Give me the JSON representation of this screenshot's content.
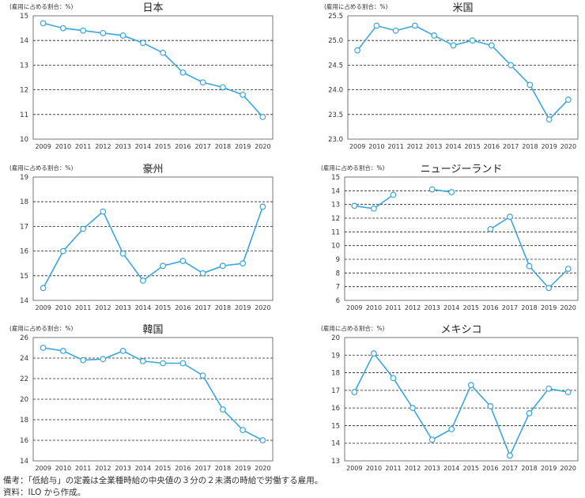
{
  "ylabel": "(雇用に占める割合：%)",
  "notes": {
    "line1": "備考：「低給与」の定義は全業種時給の中央値の３分の２未満の時給で労働する雇用。",
    "line2": "資料：ILO から作成。"
  },
  "colors": {
    "line": "#3aa6dd",
    "marker_fill": "#ffffff",
    "axis": "#555555",
    "grid": "#222222"
  },
  "chart_data": [
    {
      "type": "line",
      "title": "日本",
      "ylabel": "(雇用に占める割合：%)",
      "categories": [
        "2009",
        "2010",
        "2011",
        "2012",
        "2013",
        "2014",
        "2015",
        "2016",
        "2017",
        "2018",
        "2019",
        "2020"
      ],
      "values": [
        14.7,
        14.5,
        14.4,
        14.3,
        14.2,
        13.9,
        13.5,
        12.7,
        12.3,
        12.1,
        11.8,
        10.9
      ],
      "ylim": [
        10,
        15
      ],
      "yticks": [
        "10",
        "11",
        "12",
        "13",
        "14",
        "15"
      ],
      "grid": true
    },
    {
      "type": "line",
      "title": "米国",
      "ylabel": "(雇用に占める割合：%)",
      "categories": [
        "2009",
        "2010",
        "2011",
        "2012",
        "2013",
        "2014",
        "2015",
        "2016",
        "2017",
        "2018",
        "2019",
        "2020"
      ],
      "values": [
        24.8,
        25.3,
        25.2,
        25.3,
        25.1,
        24.9,
        25.0,
        24.9,
        24.5,
        24.1,
        23.4,
        23.8
      ],
      "ylim": [
        23.0,
        25.5
      ],
      "yticks": [
        "23.0",
        "23.5",
        "24.0",
        "24.5",
        "25.0",
        "25.5"
      ],
      "grid": true
    },
    {
      "type": "line",
      "title": "豪州",
      "ylabel": "(雇用に占める割合：%)",
      "categories": [
        "2009",
        "2010",
        "2011",
        "2012",
        "2013",
        "2014",
        "2015",
        "2016",
        "2017",
        "2018",
        "2019",
        "2020"
      ],
      "values": [
        14.5,
        16.0,
        16.9,
        17.6,
        15.9,
        14.8,
        15.4,
        15.6,
        15.1,
        15.4,
        15.5,
        17.8
      ],
      "ylim": [
        14,
        19
      ],
      "yticks": [
        "14",
        "15",
        "16",
        "17",
        "18",
        "19"
      ],
      "grid": true
    },
    {
      "type": "line",
      "title": "ニュージーランド",
      "ylabel": "(雇用に占める割合：%)",
      "categories": [
        "2009",
        "2010",
        "2011",
        "2012",
        "2013",
        "2014",
        "2015",
        "2016",
        "2017",
        "2018",
        "2019",
        "2020"
      ],
      "values": [
        12.9,
        12.7,
        13.7,
        null,
        14.1,
        13.9,
        null,
        11.2,
        12.1,
        8.5,
        6.9,
        8.3
      ],
      "ylim": [
        6,
        15
      ],
      "yticks": [
        "6",
        "7",
        "8",
        "9",
        "10",
        "11",
        "12",
        "13",
        "14",
        "15"
      ],
      "grid": true
    },
    {
      "type": "line",
      "title": "韓国",
      "ylabel": "(雇用に占める割合：%)",
      "categories": [
        "2009",
        "2010",
        "2011",
        "2012",
        "2013",
        "2014",
        "2015",
        "2016",
        "2017",
        "2018",
        "2019",
        "2020"
      ],
      "values": [
        25.0,
        24.7,
        23.8,
        23.9,
        24.7,
        23.7,
        23.5,
        23.5,
        22.3,
        19.0,
        17.0,
        16.0
      ],
      "ylim": [
        14,
        26
      ],
      "yticks": [
        "14",
        "16",
        "18",
        "20",
        "22",
        "24",
        "26"
      ],
      "grid": true
    },
    {
      "type": "line",
      "title": "メキシコ",
      "ylabel": "(雇用に占める割合：%)",
      "categories": [
        "2009",
        "2010",
        "2011",
        "2012",
        "2013",
        "2014",
        "2015",
        "2016",
        "2017",
        "2018",
        "2019",
        "2020"
      ],
      "values": [
        16.9,
        19.1,
        17.7,
        16.0,
        14.2,
        14.8,
        17.3,
        16.1,
        13.3,
        15.7,
        17.1,
        16.9
      ],
      "ylim": [
        13,
        20
      ],
      "yticks": [
        "13",
        "14",
        "15",
        "16",
        "17",
        "18",
        "19",
        "20"
      ],
      "grid": true
    }
  ]
}
